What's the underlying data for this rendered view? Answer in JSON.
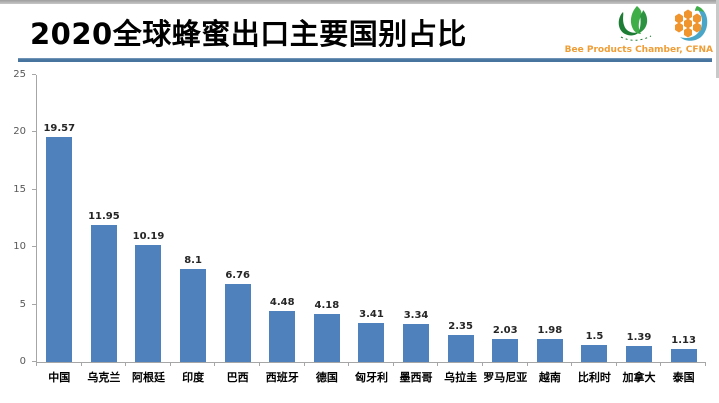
{
  "header": {
    "title": "2020全球蜂蜜出口主要国别占比",
    "logo_caption": "Bee Products Chamber, CFNA",
    "logos": [
      "cfna-green-emblem",
      "honeycomb-crescent-emblem"
    ]
  },
  "colors": {
    "bar": "#4f81bd",
    "divider": "#46749e",
    "axis": "#a6a6a6",
    "axis_text": "#595959",
    "caption_orange": "#ef9d35",
    "logo_green_dark": "#1e7d34",
    "logo_green_light": "#3fae49",
    "logo_orange": "#f0942d",
    "logo_blue": "#4aa6c8"
  },
  "chart_data": {
    "type": "bar",
    "title": "2020全球蜂蜜出口主要国别占比",
    "categories": [
      "中国",
      "乌克兰",
      "阿根廷",
      "印度",
      "巴西",
      "西班牙",
      "德国",
      "匈牙利",
      "墨西哥",
      "乌拉圭",
      "罗马尼亚",
      "越南",
      "比利时",
      "加拿大",
      "泰国"
    ],
    "values": [
      19.57,
      11.95,
      10.19,
      8.1,
      6.76,
      4.48,
      4.18,
      3.41,
      3.34,
      2.35,
      2.03,
      1.98,
      1.5,
      1.39,
      1.13
    ],
    "value_labels": [
      "19.57",
      "11.95",
      "10.19",
      "8.1",
      "6.76",
      "4.48",
      "4.18",
      "3.41",
      "3.34",
      "2.35",
      "2.03",
      "1.98",
      "1.5",
      "1.39",
      "1.13"
    ],
    "xlabel": "",
    "ylabel": "",
    "ylim": [
      0,
      25
    ],
    "yticks": [
      0,
      5,
      10,
      15,
      20,
      25
    ],
    "grid": false,
    "legend": false,
    "bar_color": "#4f81bd"
  }
}
